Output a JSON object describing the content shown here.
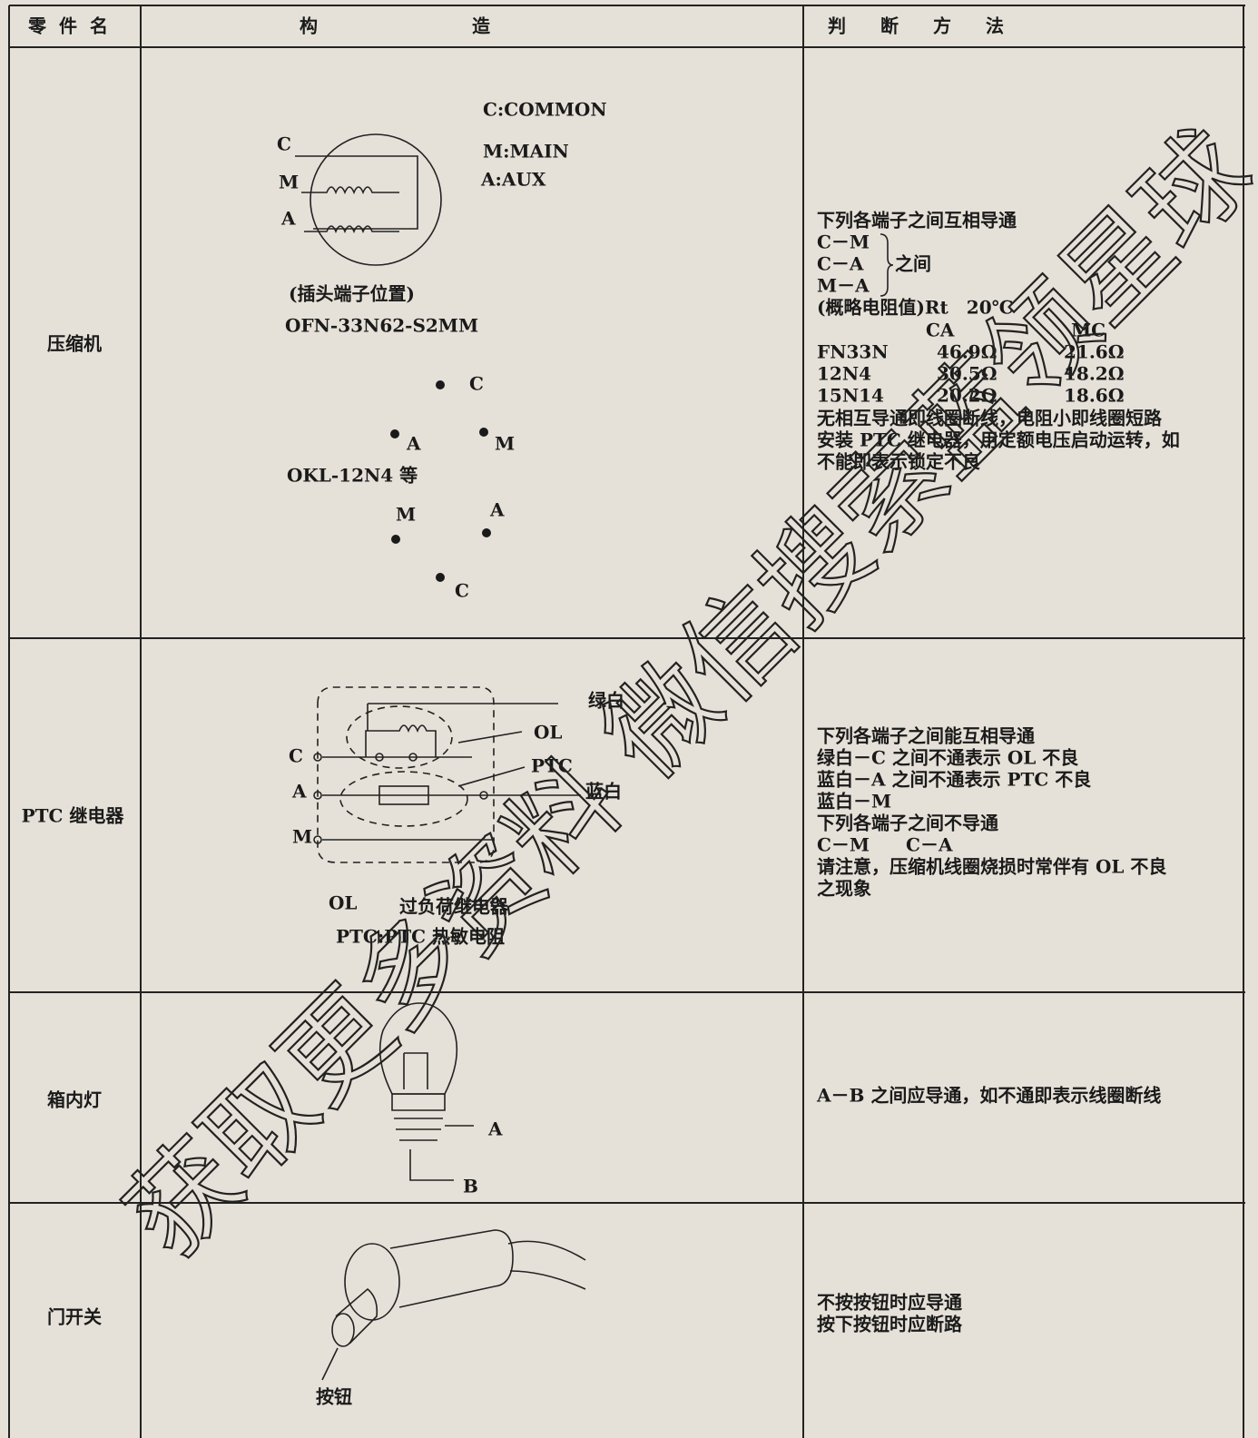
{
  "header": {
    "part": "零件名",
    "structure": "构造",
    "method": "判断方法"
  },
  "rows": [
    {
      "part": "压缩机",
      "structure": {
        "legend_c": "C:COMMON",
        "legend_m": "M:MAIN",
        "legend_a": "A:AUX",
        "coil_c": "C",
        "coil_m": "M",
        "coil_a": "A",
        "caption": "(插头端子位置)",
        "model1": "OFN-33N62-S2MM",
        "pin1_c": "C",
        "pin1_a": "A",
        "pin1_m": "M",
        "model2": "OKL-12N4 等",
        "pin2_m": "M",
        "pin2_a": "A",
        "pin2_c": "C"
      },
      "method": {
        "intro": "下列各端子之间互相导通",
        "pairs": [
          "C－M",
          "C－A",
          "M－A"
        ],
        "pairs_note": "之间",
        "resistance_title": "(概略电阻值)Rt　20℃",
        "resistance_header": [
          "CA",
          "MC"
        ],
        "resistance_rows": [
          [
            "FN33N",
            "46.9Ω",
            "21.6Ω"
          ],
          [
            "12N4",
            "30.5Ω",
            "18.2Ω"
          ],
          [
            "15N14",
            "20.2Ω",
            "18.6Ω"
          ]
        ],
        "notes": [
          "无相互导通即线圈断线，电阻小即线圈短路",
          "安装 PTC 继电器，用定额电压启动运转，如",
          "不能即表示锁定不良"
        ]
      }
    },
    {
      "part": "PTC 继电器",
      "structure": {
        "green_white": "绿白",
        "ol": "OL",
        "ptc": "PTC",
        "blue_white": "蓝白",
        "term_c": "C",
        "term_a": "A",
        "term_m": "M",
        "ol_key": "OL",
        "ol_desc": "过负荷继电器",
        "ptc_desc": "PTC:PTC 热敏电阻"
      },
      "method": {
        "lines": [
          "下列各端子之间能互相导通",
          "绿白－C 之间不通表示 OL 不良",
          "蓝白－A 之间不通表示 PTC 不良",
          "蓝白－M",
          "下列各端子之间不导通",
          "C－M　　C－A",
          "请注意，压缩机线圈烧损时常伴有 OL 不良",
          "之现象"
        ]
      }
    },
    {
      "part": "箱内灯",
      "structure": {
        "a": "A",
        "b": "B"
      },
      "method": {
        "lines": [
          "A－B 之间应导通，如不通即表示线圈断线"
        ]
      }
    },
    {
      "part": "门开关",
      "structure": {
        "button": "按钮"
      },
      "method": {
        "lines": [
          "不按按钮时应导通",
          "按下按钮时应断路"
        ]
      }
    }
  ],
  "watermark": "获取更多资料 微信搜索蓝领星球"
}
